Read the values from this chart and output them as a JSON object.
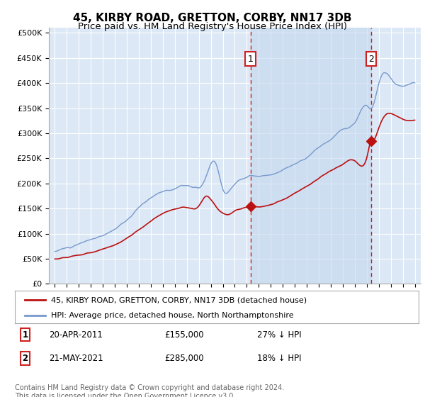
{
  "title": "45, KIRBY ROAD, GRETTON, CORBY, NN17 3DB",
  "subtitle": "Price paid vs. HM Land Registry's House Price Index (HPI)",
  "title_fontsize": 11,
  "subtitle_fontsize": 9.5,
  "bg_color": "#dce8f5",
  "plot_bg_color": "#dce8f5",
  "grid_color": "#ffffff",
  "red_line_color": "#bb1111",
  "blue_line_color": "#7799cc",
  "fill_color": "#c5d8ef",
  "vline_color": "#cc2222",
  "purchase1_year": 2011.3,
  "purchase1_price": 155000,
  "purchase1_label": "1",
  "purchase2_year": 2021.38,
  "purchase2_price": 285000,
  "purchase2_label": "2",
  "ylim_min": 0,
  "ylim_max": 510000,
  "yticks": [
    0,
    50000,
    100000,
    150000,
    200000,
    250000,
    300000,
    350000,
    400000,
    450000,
    500000
  ],
  "ytick_labels": [
    "£0",
    "£50K",
    "£100K",
    "£150K",
    "£200K",
    "£250K",
    "£300K",
    "£350K",
    "£400K",
    "£450K",
    "£500K"
  ],
  "legend_label1": "45, KIRBY ROAD, GRETTON, CORBY, NN17 3DB (detached house)",
  "legend_label2": "HPI: Average price, detached house, North Northamptonshire",
  "note1_label": "1",
  "note1_date": "20-APR-2011",
  "note1_price": "£155,000",
  "note1_hpi": "27% ↓ HPI",
  "note2_label": "2",
  "note2_date": "21-MAY-2021",
  "note2_price": "£285,000",
  "note2_hpi": "18% ↓ HPI",
  "footer": "Contains HM Land Registry data © Crown copyright and database right 2024.\nThis data is licensed under the Open Government Licence v3.0.",
  "xlim_min": 1994.5,
  "xlim_max": 2025.5
}
